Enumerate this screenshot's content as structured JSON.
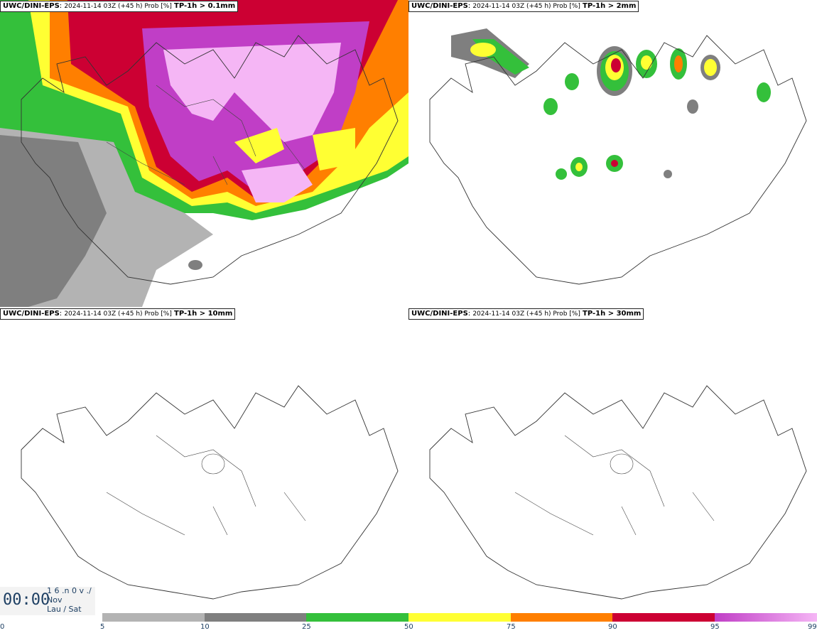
{
  "panels": [
    {
      "source": "UWC/DINI-EPS",
      "meta": "2024-11-14 03Z (+45 h) Prob [%]",
      "threshold": "TP-1h > 0.1mm"
    },
    {
      "source": "UWC/DINI-EPS",
      "meta": "2024-11-14 03Z (+45 h) Prob [%]",
      "threshold": "TP-1h > 2mm"
    },
    {
      "source": "UWC/DINI-EPS",
      "meta": "2024-11-14 03Z (+45 h) Prob [%]",
      "threshold": "TP-1h > 10mm"
    },
    {
      "source": "UWC/DINI-EPS",
      "meta": "2024-11-14 03Z (+45 h) Prob [%]",
      "threshold": "TP-1h > 30mm"
    }
  ],
  "clock": {
    "time": "00:00",
    "date_line": "1 6 .n 0 v ./",
    "month": "Nov",
    "day": "Lau / Sat"
  },
  "colorbar": {
    "ticks": [
      "0",
      "5",
      "10",
      "25",
      "50",
      "75",
      "90",
      "95",
      "99"
    ],
    "colors": [
      "#ffffff",
      "#b3b3b3",
      "#7f7f7f",
      "#34c03b",
      "#ffff33",
      "#ff7f00",
      "#cc0033",
      "#c03ec6",
      "#f5b6f5"
    ]
  }
}
